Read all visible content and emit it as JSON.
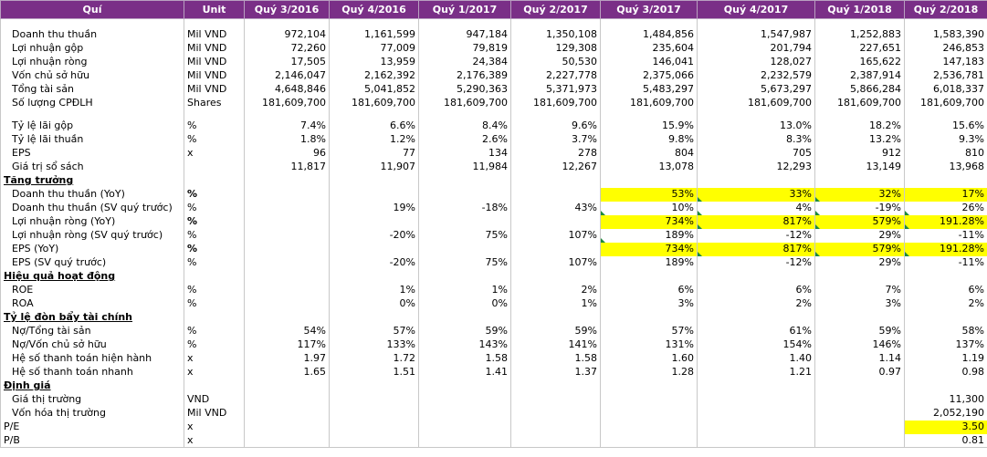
{
  "table": {
    "headers": [
      "Quí",
      "Unit",
      "Quý 3/2016",
      "Quý 4/2016",
      "Quý 1/2017",
      "Quý 2/2017",
      "Quý 3/2017",
      "Quý 4/2017",
      "Quý 1/2018",
      "Quý 2/2018"
    ],
    "rows": [
      {
        "type": "gap",
        "cells": []
      },
      {
        "cells": [
          "Doanh thu thuần",
          "Mil VND",
          "972,104",
          "1,161,599",
          "947,184",
          "1,350,108",
          "1,484,856",
          "1,547,987",
          "1,252,883",
          "1,583,390"
        ]
      },
      {
        "cells": [
          "Lợi nhuận gộp",
          "Mil VND",
          "72,260",
          "77,009",
          "79,819",
          "129,308",
          "235,604",
          "201,794",
          "227,651",
          "246,853"
        ]
      },
      {
        "cells": [
          "Lợi nhuận ròng",
          "Mil VND",
          "17,505",
          "13,959",
          "24,384",
          "50,530",
          "146,041",
          "128,027",
          "165,622",
          "147,183"
        ]
      },
      {
        "cells": [
          "Vốn chủ sở hữu",
          "Mil VND",
          "2,146,047",
          "2,162,392",
          "2,176,389",
          "2,227,778",
          "2,375,066",
          "2,232,579",
          "2,387,914",
          "2,536,781"
        ]
      },
      {
        "cells": [
          "Tổng tài sản",
          "Mil VND",
          "4,648,846",
          "5,041,852",
          "5,290,363",
          "5,371,973",
          "5,483,297",
          "5,673,297",
          "5,866,284",
          "6,018,337"
        ]
      },
      {
        "cells": [
          "Số lượng CPĐLH",
          "Shares",
          "181,609,700",
          "181,609,700",
          "181,609,700",
          "181,609,700",
          "181,609,700",
          "181,609,700",
          "181,609,700",
          "181,609,700"
        ]
      },
      {
        "type": "gap",
        "cells": []
      },
      {
        "cells": [
          "Tỷ lệ lãi gộp",
          "%",
          "7.4%",
          "6.6%",
          "8.4%",
          "9.6%",
          "15.9%",
          "13.0%",
          "18.2%",
          "15.6%"
        ]
      },
      {
        "cells": [
          "Tỷ lệ lãi thuần",
          "%",
          "1.8%",
          "1.2%",
          "2.6%",
          "3.7%",
          "9.8%",
          "8.3%",
          "13.2%",
          "9.3%"
        ]
      },
      {
        "cells": [
          "EPS",
          "x",
          "96",
          "77",
          "134",
          "278",
          "804",
          "705",
          "912",
          "810"
        ]
      },
      {
        "cells": [
          "Giá trị sổ sách",
          "",
          "11,817",
          "11,907",
          "11,984",
          "12,267",
          "13,078",
          "12,293",
          "13,149",
          "13,968"
        ]
      },
      {
        "type": "section",
        "cells": [
          "Tăng trưởng"
        ]
      },
      {
        "cells": [
          "Doanh thu thuần (YoY)",
          "%",
          "",
          "",
          "",
          "",
          "53%",
          "33%",
          "32%",
          "17%"
        ],
        "unit_bold": true,
        "hl": [
          6,
          7,
          8,
          9
        ],
        "mark": [
          7,
          8
        ]
      },
      {
        "cells": [
          "Doanh thu thuần (SV quý trước)",
          "%",
          "",
          "19%",
          "-18%",
          "43%",
          "10%",
          "4%",
          "-19%",
          "26%"
        ],
        "mark": [
          6,
          7,
          8,
          9
        ]
      },
      {
        "cells": [
          "Lợi nhuận ròng (YoY)",
          "%",
          "",
          "",
          "",
          "",
          "734%",
          "817%",
          "579%",
          "191.28%"
        ],
        "unit_bold": true,
        "hl": [
          6,
          7,
          8,
          9
        ],
        "mark": [
          7,
          8,
          9
        ]
      },
      {
        "cells": [
          "Lợi nhuận ròng (SV quý trước)",
          "%",
          "",
          "-20%",
          "75%",
          "107%",
          "189%",
          "-12%",
          "29%",
          "-11%"
        ],
        "mark": [
          6
        ]
      },
      {
        "cells": [
          "EPS (YoY)",
          "%",
          "",
          "",
          "",
          "",
          "734%",
          "817%",
          "579%",
          "191.28%"
        ],
        "unit_bold": true,
        "hl": [
          6,
          7,
          8,
          9
        ],
        "mark": [
          7,
          8,
          9
        ]
      },
      {
        "cells": [
          "EPS (SV quý trước)",
          "%",
          "",
          "-20%",
          "75%",
          "107%",
          "189%",
          "-12%",
          "29%",
          "-11%"
        ]
      },
      {
        "type": "section",
        "cells": [
          "Hiệu quả hoạt động"
        ]
      },
      {
        "cells": [
          "ROE",
          "%",
          "",
          "1%",
          "1%",
          "2%",
          "6%",
          "6%",
          "7%",
          "6%"
        ]
      },
      {
        "cells": [
          "ROA",
          "%",
          "",
          "0%",
          "0%",
          "1%",
          "3%",
          "2%",
          "3%",
          "2%"
        ]
      },
      {
        "type": "section",
        "cells": [
          "Tỷ lệ đòn bẩy tài chính"
        ]
      },
      {
        "cells": [
          "Nợ/Tổng tài sản",
          "%",
          "54%",
          "57%",
          "59%",
          "59%",
          "57%",
          "61%",
          "59%",
          "58%"
        ]
      },
      {
        "cells": [
          "Nợ/Vốn chủ sở hữu",
          "%",
          "117%",
          "133%",
          "143%",
          "141%",
          "131%",
          "154%",
          "146%",
          "137%"
        ]
      },
      {
        "cells": [
          "Hệ số thanh toán hiện hành",
          "x",
          "1.97",
          "1.72",
          "1.58",
          "1.58",
          "1.60",
          "1.40",
          "1.14",
          "1.19"
        ]
      },
      {
        "cells": [
          "Hệ số thanh toán nhanh",
          "x",
          "1.65",
          "1.51",
          "1.41",
          "1.37",
          "1.28",
          "1.21",
          "0.97",
          "0.98"
        ]
      },
      {
        "type": "section",
        "cells": [
          "Định giá"
        ]
      },
      {
        "cells": [
          "Giá thị trường",
          "VND",
          "",
          "",
          "",
          "",
          "",
          "",
          "",
          "11,300"
        ]
      },
      {
        "cells": [
          "Vốn hóa thị trường",
          "Mil VND",
          "",
          "",
          "",
          "",
          "",
          "",
          "",
          "2,052,190"
        ]
      },
      {
        "cells": [
          "P/E",
          "x",
          "",
          "",
          "",
          "",
          "",
          "",
          "",
          "3.50"
        ],
        "hl": [
          9
        ],
        "lbl_flush": true
      },
      {
        "cells": [
          "P/B",
          "x",
          "",
          "",
          "",
          "",
          "",
          "",
          "",
          "0.81"
        ],
        "lbl_flush": true
      }
    ]
  }
}
